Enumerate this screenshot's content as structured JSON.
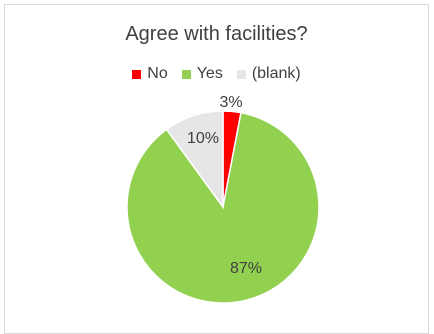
{
  "chart_data": {
    "type": "pie",
    "title": "Agree with facilities?",
    "legend_position": "top",
    "categories": [
      "No",
      "Yes",
      "(blank)"
    ],
    "values": [
      3,
      87,
      10
    ],
    "labels": [
      "3%",
      "87%",
      "10%"
    ],
    "colors": [
      "#ff0000",
      "#92d050",
      "#e7e6e6"
    ],
    "start_angle_deg": 0
  }
}
